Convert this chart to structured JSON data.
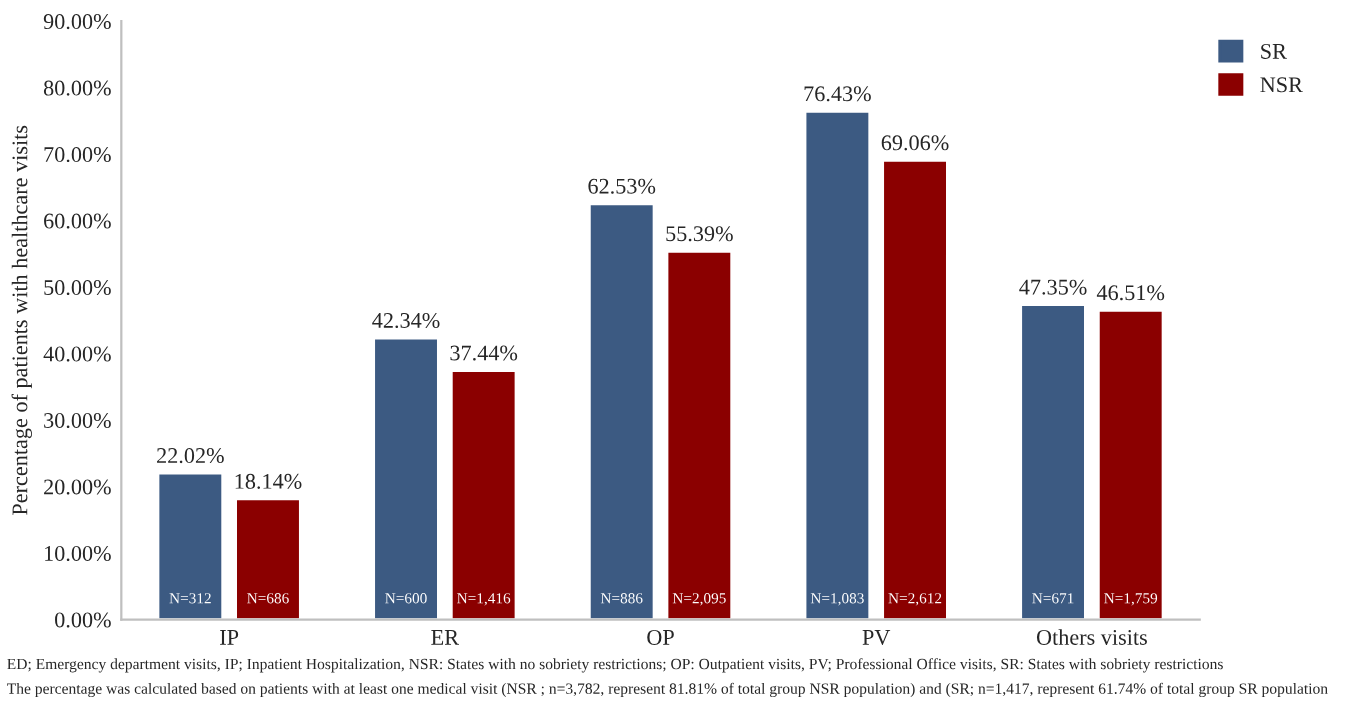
{
  "chart_data": {
    "type": "bar",
    "ylabel": "Percentage of patients with healthcare visits",
    "categories": [
      "IP",
      "ER",
      "OP",
      "PV",
      "Others visits"
    ],
    "series": [
      {
        "name": "SR",
        "color": "#3c5a82",
        "values": [
          22.02,
          42.34,
          62.53,
          76.43,
          47.35
        ],
        "value_labels": [
          "22.02%",
          "42.34%",
          "62.53%",
          "76.43%",
          "47.35%"
        ]
      },
      {
        "name": "NSR",
        "color": "#8b0000",
        "values": [
          18.14,
          37.44,
          55.39,
          69.06,
          46.51
        ],
        "value_labels": [
          "18.14%",
          "37.44%",
          "55.39%",
          "69.06%",
          "46.51%"
        ]
      }
    ],
    "ylim": [
      0,
      90
    ],
    "yticks": [
      {
        "value": 0,
        "label": "0.00%"
      },
      {
        "value": 10,
        "label": "10.00%"
      },
      {
        "value": 20,
        "label": "20.00%"
      },
      {
        "value": 30,
        "label": "30.00%"
      },
      {
        "value": 40,
        "label": "40.00%"
      },
      {
        "value": 50,
        "label": "50.00%"
      },
      {
        "value": 60,
        "label": "60.00%"
      },
      {
        "value": 70,
        "label": "70.00%"
      },
      {
        "value": 80,
        "label": "80.00%"
      },
      {
        "value": 90,
        "label": "90.00%"
      }
    ],
    "grid": false,
    "legend": "top right",
    "annotations": [
      {
        "text": "N=312",
        "x": "IP",
        "y": 3
      },
      {
        "text": "N=686",
        "x": "IP",
        "y": 3
      },
      {
        "text": "N=600",
        "x": "ER",
        "y": 3
      },
      {
        "text": "N=1,416",
        "x": "ER",
        "y": 3
      },
      {
        "text": "N=886",
        "x": "OP",
        "y": 3
      },
      {
        "text": "N=2,095",
        "x": "OP",
        "y": 3
      },
      {
        "text": "N=1,083",
        "x": "PV",
        "y": 3
      },
      {
        "text": "N=2,612",
        "x": "PV",
        "y": 3
      },
      {
        "text": "N=671",
        "x": "Others visits",
        "y": 3
      },
      {
        "text": "N=1,759",
        "x": "Others visits",
        "y": 3
      },
      "ED; Emergency department visits, IP; Inpatient Hospitalization, NSR: States with no sobriety restrictions; OP: Outpatient visits, PV; Professional Office visits, SR: States with sobriety restrictions",
      "The percentage was calculated based on patients with at least one medical visit (NSR ; n=3,782, represent 81.81% of total group NSR population) and (SR; n=1,417, represent 61.74% of total group SR population"
    ]
  }
}
